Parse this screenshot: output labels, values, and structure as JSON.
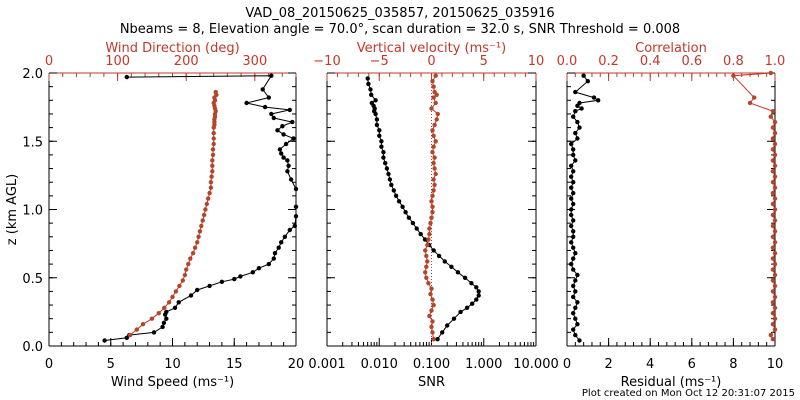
{
  "title_line1": "VAD_08_20150625_035857, 20150625_035916",
  "title_line2": "Nbeams = 8, Elevation angle = 70.0°, scan duration = 32.0 s, SNR Threshold = 0.008",
  "footer": "Plot created on Mon Oct 12 20:31:07 2015",
  "colors": {
    "black": "#000000",
    "red": "#c0392b",
    "red_marker": "#b5452a"
  },
  "chart_data": [
    {
      "type": "scatter",
      "name": "panel-1",
      "ylabel": "z (km AGL)",
      "ylim": [
        0,
        2
      ],
      "yticks": [
        0.0,
        0.5,
        1.0,
        1.5,
        2.0
      ],
      "ytick_labels": [
        "0.0",
        "0.5",
        "1.0",
        "1.5",
        "2.0"
      ],
      "bottom_axis": {
        "label": "Wind Speed (ms⁻¹)",
        "xlim": [
          0,
          20
        ],
        "ticks": [
          0,
          5,
          10,
          15,
          20
        ],
        "tick_labels": [
          "0",
          "5",
          "10",
          "15",
          "20"
        ]
      },
      "top_axis": {
        "label": "Wind Direction (deg)",
        "xlim": [
          0,
          360
        ],
        "ticks": [
          0,
          100,
          200,
          300
        ],
        "tick_labels": [
          "0",
          "100",
          "200",
          "300"
        ]
      },
      "series": [
        {
          "axis": "bottom",
          "color": "#000000",
          "x": [
            4.5,
            6.3,
            6.5,
            8.5,
            9.2,
            9.3,
            9.5,
            9.4,
            9.5,
            10.2,
            10.5,
            11.5,
            12.0,
            13.0,
            14.0,
            15.0,
            15.5,
            16.5,
            17.0,
            17.8,
            18.2,
            18.3,
            18.6,
            18.8,
            19.1,
            19.5,
            19.9,
            20.0,
            20.0,
            20.0,
            19.6,
            19.3,
            19.4,
            19.3,
            19.0,
            18.8,
            18.7,
            19.2,
            19.8,
            19.0,
            18.5,
            18.9,
            19.7,
            18.2,
            18.0,
            19.5,
            17.5,
            16.0,
            17.8,
            17.3,
            18.0,
            6.3
          ],
          "y": [
            0.04,
            0.06,
            0.08,
            0.1,
            0.14,
            0.17,
            0.2,
            0.23,
            0.25,
            0.28,
            0.32,
            0.37,
            0.41,
            0.44,
            0.47,
            0.49,
            0.51,
            0.54,
            0.57,
            0.6,
            0.64,
            0.68,
            0.72,
            0.76,
            0.8,
            0.85,
            0.88,
            0.95,
            1.02,
            1.15,
            1.22,
            1.28,
            1.32,
            1.36,
            1.38,
            1.41,
            1.44,
            1.48,
            1.52,
            1.55,
            1.58,
            1.61,
            1.64,
            1.67,
            1.7,
            1.73,
            1.75,
            1.78,
            1.82,
            1.88,
            1.98,
            1.97
          ]
        },
        {
          "axis": "top",
          "color": "#b5452a",
          "x": [
            118,
            128,
            137,
            150,
            160,
            168,
            175,
            180,
            185,
            190,
            195,
            198,
            200,
            203,
            206,
            210,
            213,
            216,
            218,
            220,
            222,
            224,
            226,
            228,
            230,
            232,
            234,
            236,
            236,
            237,
            238,
            238,
            238,
            239,
            239,
            240,
            240,
            240,
            240,
            241,
            241,
            241,
            242,
            242,
            243,
            242,
            241,
            240,
            242,
            241,
            244,
            243
          ],
          "y": [
            0.08,
            0.12,
            0.16,
            0.2,
            0.24,
            0.28,
            0.32,
            0.36,
            0.4,
            0.44,
            0.48,
            0.52,
            0.56,
            0.6,
            0.64,
            0.68,
            0.72,
            0.76,
            0.8,
            0.84,
            0.88,
            0.92,
            0.96,
            1.0,
            1.04,
            1.08,
            1.12,
            1.16,
            1.2,
            1.24,
            1.28,
            1.32,
            1.36,
            1.4,
            1.44,
            1.48,
            1.52,
            1.56,
            1.6,
            1.62,
            1.64,
            1.66,
            1.68,
            1.7,
            1.72,
            1.74,
            1.76,
            1.78,
            1.8,
            1.82,
            1.84,
            1.86
          ]
        }
      ]
    },
    {
      "type": "scatter",
      "name": "panel-2",
      "ylim": [
        0,
        2
      ],
      "yticks": [
        0.0,
        0.5,
        1.0,
        1.5,
        2.0
      ],
      "bottom_axis": {
        "label": "SNR",
        "scale": "log",
        "xlim": [
          0.001,
          10
        ],
        "ticks": [
          0.001,
          0.01,
          0.1,
          1,
          10
        ],
        "tick_labels": [
          "0.001",
          "0.010",
          "0.100",
          "1.000",
          "10.000"
        ]
      },
      "top_axis": {
        "label": "Vertical velocity (ms⁻¹)",
        "xlim": [
          -10,
          10
        ],
        "ticks": [
          -10,
          -5,
          0,
          5,
          10
        ],
        "tick_labels": [
          "−10",
          "−5",
          "0",
          "5",
          "10"
        ]
      },
      "series": [
        {
          "axis": "bottom",
          "color": "#000000",
          "x": [
            0.13,
            0.16,
            0.2,
            0.27,
            0.36,
            0.48,
            0.6,
            0.72,
            0.8,
            0.8,
            0.72,
            0.58,
            0.44,
            0.32,
            0.24,
            0.18,
            0.14,
            0.11,
            0.09,
            0.075,
            0.062,
            0.052,
            0.044,
            0.037,
            0.032,
            0.028,
            0.024,
            0.021,
            0.019,
            0.017,
            0.016,
            0.015,
            0.014,
            0.013,
            0.012,
            0.012,
            0.011,
            0.011,
            0.01,
            0.01,
            0.009,
            0.009,
            0.0085,
            0.008,
            0.0082,
            0.0078,
            0.0072,
            0.0085,
            0.007,
            0.0068,
            0.0062,
            0.006
          ],
          "y": [
            0.05,
            0.1,
            0.15,
            0.2,
            0.25,
            0.28,
            0.31,
            0.34,
            0.37,
            0.4,
            0.43,
            0.46,
            0.5,
            0.54,
            0.58,
            0.62,
            0.66,
            0.7,
            0.74,
            0.78,
            0.82,
            0.86,
            0.9,
            0.94,
            0.98,
            1.02,
            1.06,
            1.1,
            1.14,
            1.18,
            1.22,
            1.26,
            1.3,
            1.34,
            1.38,
            1.42,
            1.46,
            1.5,
            1.54,
            1.58,
            1.62,
            1.66,
            1.7,
            1.72,
            1.74,
            1.76,
            1.78,
            1.8,
            1.84,
            1.88,
            1.92,
            1.96
          ]
        },
        {
          "axis": "top",
          "color": "#b5452a",
          "x": [
            0.2,
            0.1,
            0.0,
            0.1,
            -0.2,
            0.0,
            0.2,
            0.1,
            -0.1,
            0.0,
            -0.3,
            -0.5,
            -0.6,
            -0.5,
            -0.4,
            -0.5,
            -0.6,
            -0.4,
            -0.3,
            -0.2,
            -0.2,
            -0.1,
            0.0,
            0.1,
            0.1,
            0.0,
            0.1,
            0.2,
            0.3,
            0.2,
            0.4,
            0.3,
            0.2,
            0.3,
            0.1,
            0.2,
            0.4,
            0.2,
            0.1,
            0.3,
            0.5,
            0.6,
            0.0,
            0.4,
            0.2,
            0.5,
            0.3,
            0.2,
            0.1,
            0.4
          ],
          "y": [
            0.05,
            0.1,
            0.14,
            0.18,
            0.22,
            0.26,
            0.3,
            0.34,
            0.38,
            0.42,
            0.46,
            0.5,
            0.54,
            0.58,
            0.62,
            0.66,
            0.7,
            0.74,
            0.78,
            0.82,
            0.86,
            0.9,
            0.94,
            0.98,
            1.02,
            1.06,
            1.1,
            1.14,
            1.18,
            1.22,
            1.26,
            1.3,
            1.34,
            1.38,
            1.42,
            1.46,
            1.5,
            1.54,
            1.58,
            1.62,
            1.66,
            1.7,
            1.74,
            1.78,
            1.82,
            1.84,
            1.86,
            1.9,
            1.94,
            1.98
          ]
        }
      ],
      "reference_line": {
        "axis": "top",
        "x": 0,
        "color": "#c0392b"
      }
    },
    {
      "type": "scatter",
      "name": "panel-3",
      "ylim": [
        0,
        2
      ],
      "yticks": [
        0.0,
        0.5,
        1.0,
        1.5,
        2.0
      ],
      "bottom_axis": {
        "label": "Residual (ms⁻¹)",
        "xlim": [
          0,
          10
        ],
        "ticks": [
          0,
          2,
          4,
          6,
          8,
          10
        ],
        "tick_labels": [
          "0",
          "2",
          "4",
          "6",
          "8",
          "10"
        ]
      },
      "top_axis": {
        "label": "Correlation",
        "xlim": [
          0,
          1
        ],
        "ticks": [
          0.0,
          0.2,
          0.4,
          0.6,
          0.8,
          1.0
        ],
        "tick_labels": [
          "0.0",
          "0.2",
          "0.4",
          "0.6",
          "0.8",
          "1.0"
        ]
      },
      "series": [
        {
          "axis": "bottom",
          "color": "#000000",
          "x": [
            0.6,
            0.4,
            0.3,
            0.5,
            0.4,
            0.3,
            0.4,
            0.5,
            0.3,
            0.4,
            0.3,
            0.4,
            0.5,
            0.3,
            0.2,
            0.3,
            0.4,
            0.3,
            0.2,
            0.3,
            0.3,
            0.2,
            0.3,
            0.2,
            0.2,
            0.3,
            0.2,
            0.3,
            0.2,
            0.3,
            0.2,
            0.3,
            0.2,
            0.4,
            0.3,
            0.3,
            0.2,
            0.5,
            0.4,
            0.6,
            0.5,
            0.3,
            0.4,
            0.7,
            0.5,
            0.6,
            1.5,
            1.3,
            0.4,
            1.0,
            0.8
          ],
          "y": [
            0.04,
            0.08,
            0.12,
            0.16,
            0.2,
            0.24,
            0.28,
            0.32,
            0.36,
            0.4,
            0.44,
            0.48,
            0.52,
            0.56,
            0.6,
            0.64,
            0.68,
            0.72,
            0.76,
            0.8,
            0.84,
            0.88,
            0.92,
            0.96,
            1.0,
            1.04,
            1.08,
            1.12,
            1.16,
            1.2,
            1.24,
            1.28,
            1.32,
            1.36,
            1.4,
            1.44,
            1.48,
            1.52,
            1.56,
            1.6,
            1.64,
            1.68,
            1.72,
            1.74,
            1.76,
            1.78,
            1.8,
            1.82,
            1.86,
            1.94,
            1.98
          ]
        },
        {
          "axis": "top",
          "color": "#b5452a",
          "x": [
            0.99,
            0.98,
            1.0,
            0.99,
            1.0,
            0.99,
            1.0,
            0.99,
            1.0,
            0.99,
            1.0,
            0.99,
            1.0,
            0.99,
            1.0,
            0.99,
            1.0,
            0.99,
            1.0,
            0.99,
            1.0,
            0.99,
            1.0,
            0.99,
            1.0,
            0.99,
            1.0,
            0.99,
            1.0,
            0.99,
            1.0,
            0.99,
            1.0,
            0.99,
            1.0,
            0.99,
            1.0,
            0.99,
            1.0,
            0.99,
            1.0,
            0.98,
            0.99,
            0.88,
            0.9,
            0.8,
            0.98
          ],
          "y": [
            0.05,
            0.08,
            0.12,
            0.16,
            0.2,
            0.24,
            0.28,
            0.32,
            0.36,
            0.4,
            0.44,
            0.48,
            0.52,
            0.56,
            0.6,
            0.64,
            0.68,
            0.72,
            0.76,
            0.8,
            0.84,
            0.88,
            0.92,
            0.96,
            1.0,
            1.04,
            1.08,
            1.12,
            1.16,
            1.2,
            1.24,
            1.28,
            1.32,
            1.36,
            1.4,
            1.44,
            1.48,
            1.52,
            1.56,
            1.6,
            1.64,
            1.68,
            1.72,
            1.78,
            1.82,
            1.98,
            2.0
          ]
        }
      ]
    }
  ]
}
